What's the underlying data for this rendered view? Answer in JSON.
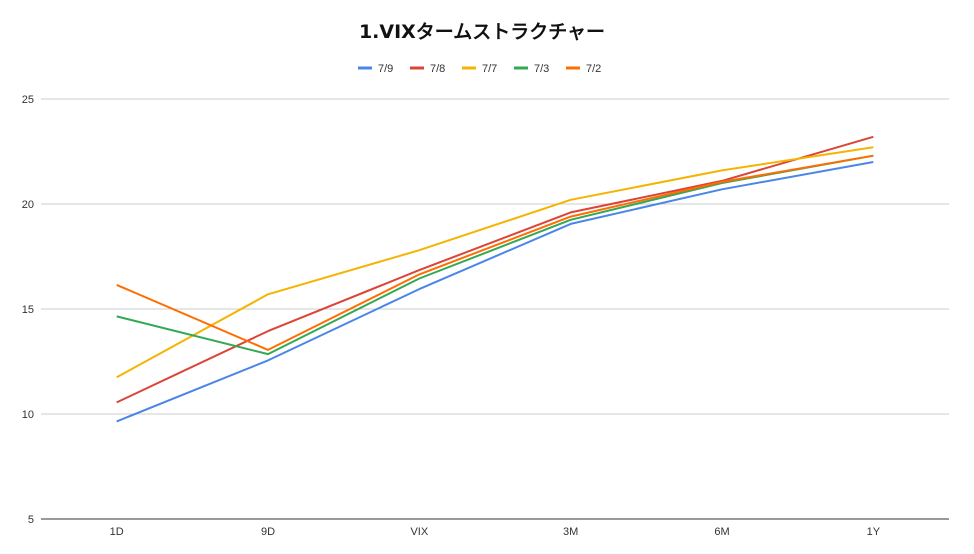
{
  "chart_data": {
    "type": "line",
    "title": "1.VIXタームストラクチャー",
    "categories": [
      "1D",
      "9D",
      "VIX",
      "3M",
      "6M",
      "1Y"
    ],
    "ylim": [
      5,
      25
    ],
    "yticks": [
      5,
      10,
      15,
      20,
      25
    ],
    "grid": true,
    "legend_position": "top-center",
    "series": [
      {
        "name": "7/9",
        "color": "#4a86e8",
        "values": [
          9.65,
          12.55,
          15.95,
          19.05,
          20.7,
          22.0
        ]
      },
      {
        "name": "7/8",
        "color": "#db4437",
        "values": [
          10.55,
          13.95,
          16.85,
          19.6,
          21.1,
          23.2
        ]
      },
      {
        "name": "7/7",
        "color": "#f4b400",
        "values": [
          11.75,
          15.7,
          17.8,
          20.2,
          21.6,
          22.7
        ]
      },
      {
        "name": "7/3",
        "color": "#34a853",
        "values": [
          14.65,
          12.85,
          16.45,
          19.25,
          21.0,
          22.3
        ]
      },
      {
        "name": "7/2",
        "color": "#ff6d01",
        "values": [
          16.15,
          13.05,
          16.65,
          19.4,
          21.05,
          22.3
        ]
      }
    ]
  }
}
